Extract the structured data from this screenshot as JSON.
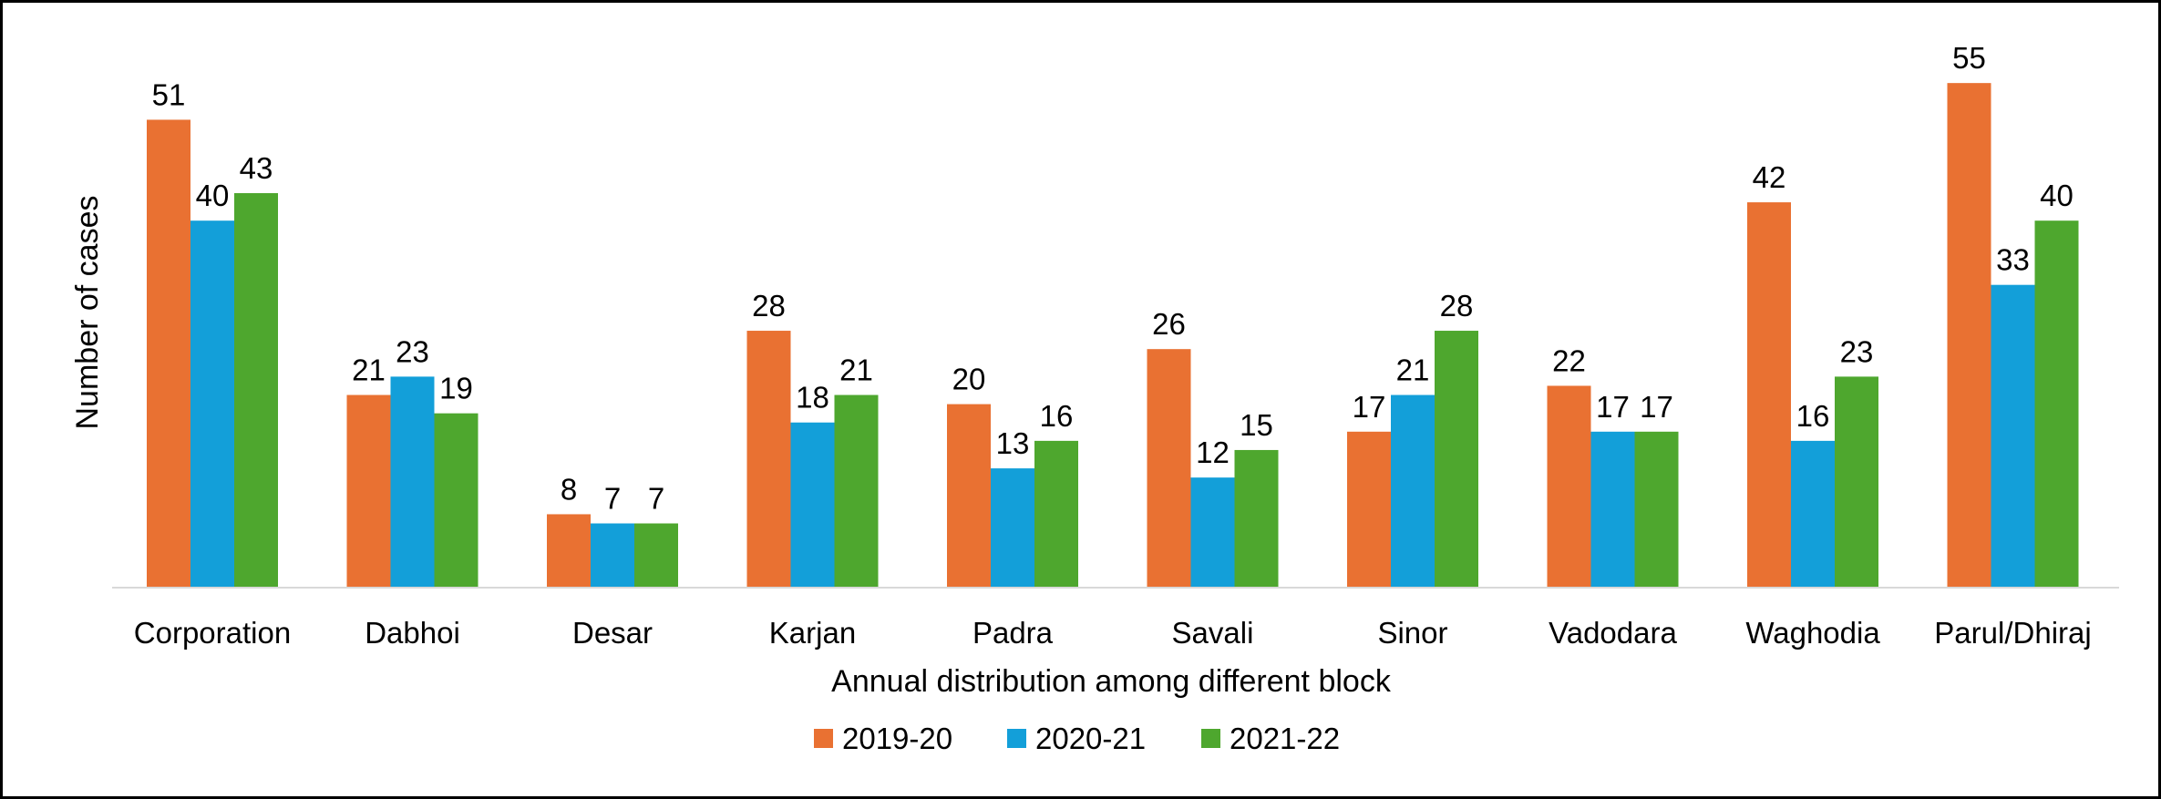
{
  "chart_data": {
    "type": "bar",
    "title": "",
    "xlabel": "Annual distribution among different block",
    "ylabel": "Number of cases",
    "categories": [
      "Corporation",
      "Dabhoi",
      "Desar",
      "Karjan",
      "Padra",
      "Savali",
      "Sinor",
      "Vadodara",
      "Waghodia",
      "Parul/Dhiraj"
    ],
    "series": [
      {
        "name": "2019-20",
        "color": "#E97132",
        "values": [
          51,
          21,
          8,
          28,
          20,
          26,
          17,
          22,
          42,
          55
        ]
      },
      {
        "name": "2020-21",
        "color": "#139FD9",
        "values": [
          40,
          23,
          7,
          18,
          13,
          12,
          21,
          17,
          16,
          33
        ]
      },
      {
        "name": "2021-22",
        "color": "#4EA72E",
        "values": [
          43,
          19,
          7,
          21,
          16,
          15,
          28,
          17,
          23,
          40
        ]
      }
    ],
    "ylim": [
      0,
      60
    ],
    "grid": false,
    "legend": "bottom"
  }
}
